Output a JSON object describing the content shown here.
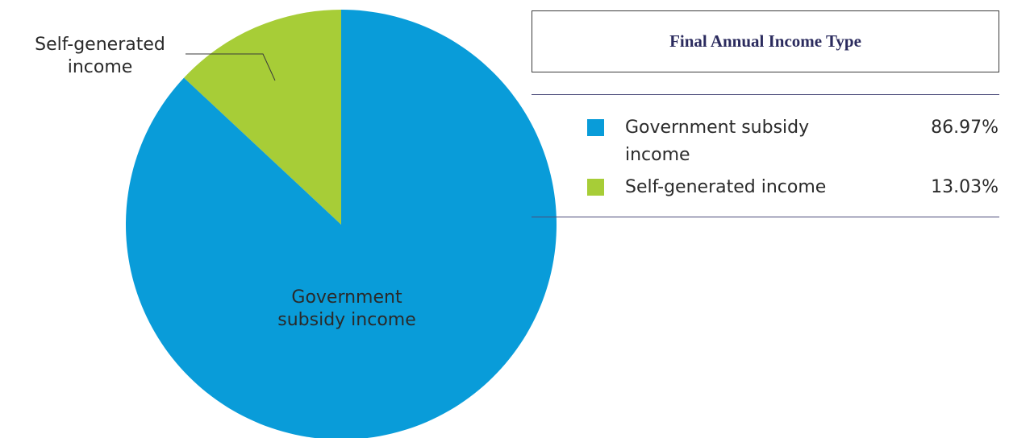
{
  "chart_data": {
    "type": "pie",
    "title": "Final Annual Income Type",
    "slices": [
      {
        "label": "Government subsidy income",
        "value": 86.97,
        "value_text": "86.97%",
        "color": "#099cd9",
        "slice_label_lines": [
          "Government",
          "subsidy income"
        ]
      },
      {
        "label": "Self-generated income",
        "value": 13.03,
        "value_text": "13.03%",
        "color": "#a7cd37",
        "slice_label_lines": [
          "Self-generated",
          "income"
        ]
      }
    ],
    "legend_placement": "right"
  }
}
